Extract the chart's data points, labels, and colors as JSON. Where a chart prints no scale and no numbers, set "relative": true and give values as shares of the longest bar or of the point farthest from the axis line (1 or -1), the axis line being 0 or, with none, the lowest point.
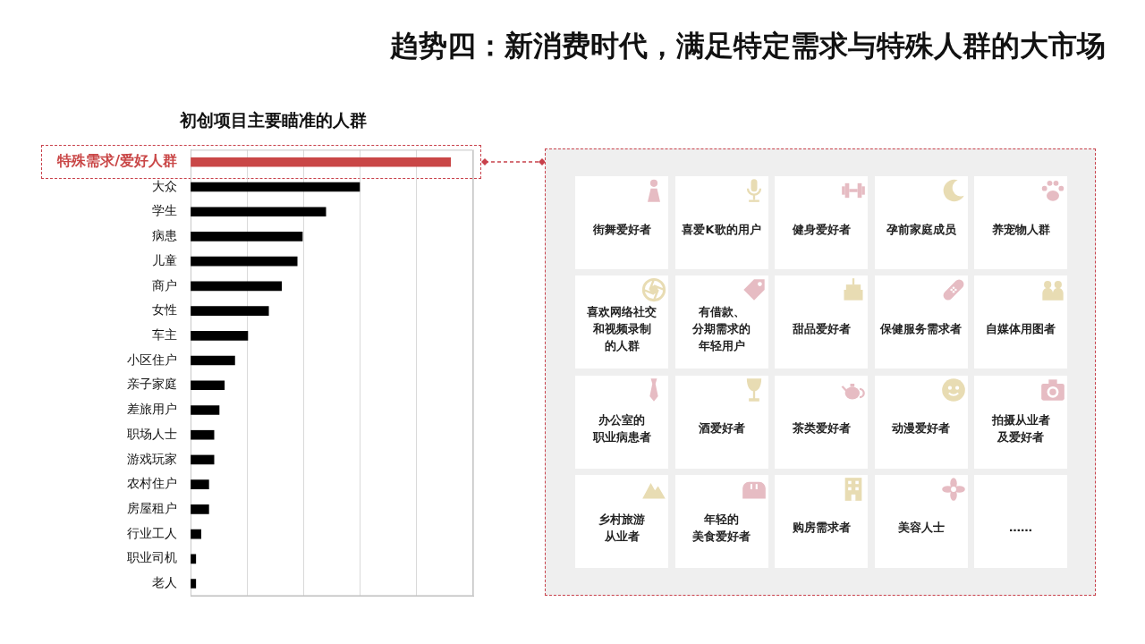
{
  "chart_data": [
    {
      "type": "bar",
      "orientation": "horizontal",
      "relative": true,
      "grid": "x",
      "title": "趋势四：新消费时代，满足特定需求与特殊人群的大市场",
      "subtitle": "初创项目主要瞄准的人群",
      "categories": [
        "特殊需求/爱好人群",
        "大众",
        "学生",
        "病患",
        "儿童",
        "商户",
        "女性",
        "车主",
        "小区住户",
        "亲子家庭",
        "差旅用户",
        "职场人士",
        "游戏玩家",
        "农村住户",
        "房屋租户",
        "行业工人",
        "职业司机",
        "老人"
      ],
      "values": [
        1,
        0.65,
        0.52,
        0.43,
        0.41,
        0.35,
        0.3,
        0.22,
        0.17,
        0.13,
        0.11,
        0.09,
        0.09,
        0.07,
        0.07,
        0.04,
        0.02,
        0.02
      ],
      "colors": [
        "#c94646",
        "#000000",
        "#000000",
        "#000000",
        "#000000",
        "#000000",
        "#000000",
        "#000000",
        "#000000",
        "#000000",
        "#000000",
        "#000000",
        "#000000",
        "#000000",
        "#000000",
        "#000000",
        "#000000",
        "#000000"
      ]
    },
    {
      "type": "other",
      "annotations": [
        "街舞爱好者",
        "喜爱K歌的用户",
        "健身爱好者",
        "孕前家庭成员",
        "养宠物人群",
        "喜欢网络社交和视频录制的人群",
        "有借款、分期需求的年轻用户",
        "甜品爱好者",
        "保健服务需求者",
        "自媒体用图者",
        "办公室的职业病患者",
        "酒爱好者",
        "茶类爱好者",
        "动漫爱好者",
        "拍摄从业者及爱好者",
        "乡村旅游从业者",
        "年轻的美食爱好者",
        "购房需求者",
        "美容人士",
        "……"
      ]
    }
  ]
}
